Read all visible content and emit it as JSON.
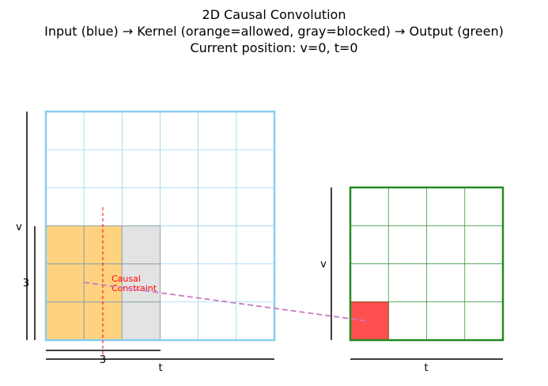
{
  "title_lines": [
    "2D Causal Convolution",
    "Input (blue) → Kernel (orange=allowed, gray=blocked) → Output (green)",
    "Current position: v=0, t=0"
  ],
  "input": {
    "rows": 6,
    "cols": 6,
    "border_color": "#87CEEB",
    "axis_v_label": "v",
    "axis_t_label": "t"
  },
  "kernel": {
    "rows": 3,
    "cols": 3,
    "allowed_cols": 2,
    "allowed_color": "#FFD280",
    "blocked_color": "#E3E3E3",
    "size_label_v": "3",
    "size_label_t": "3"
  },
  "constraint": {
    "label_line1": "Causal",
    "label_line2": "Constraint",
    "color": "#FF0000"
  },
  "output": {
    "rows": 4,
    "cols": 4,
    "border_color": "#228B22",
    "highlight_color": "#FF5050",
    "current_v": 0,
    "current_t": 0,
    "axis_v_label": "v",
    "axis_t_label": "t"
  },
  "connector_color": "#C77CC4"
}
